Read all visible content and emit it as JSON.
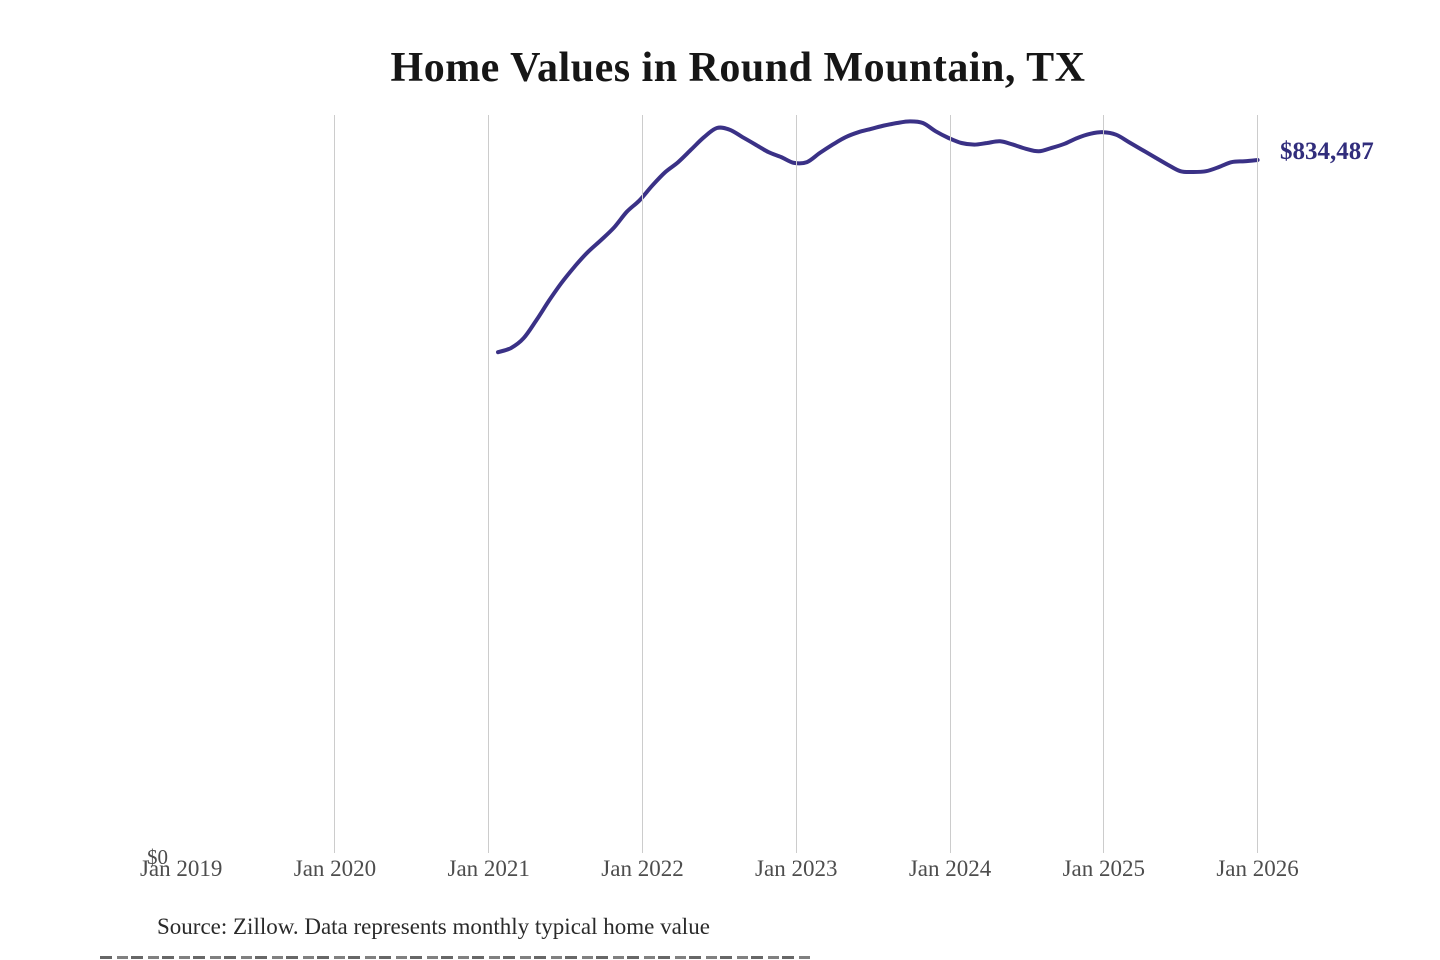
{
  "header": {
    "title": "Home Values in Round Mountain, TX"
  },
  "annotation": {
    "latest_value_label": "$834,487"
  },
  "axes": {
    "y_zero_label": "$0",
    "x_ticks": [
      {
        "label": "Jan 2019",
        "gridline": false
      },
      {
        "label": "Jan 2020",
        "gridline": true
      },
      {
        "label": "Jan 2021",
        "gridline": true
      },
      {
        "label": "Jan 2022",
        "gridline": true
      },
      {
        "label": "Jan 2023",
        "gridline": true
      },
      {
        "label": "Jan 2024",
        "gridline": true
      },
      {
        "label": "Jan 2025",
        "gridline": true
      },
      {
        "label": "Jan 2026",
        "gridline": true
      }
    ]
  },
  "footer": {
    "source_note": "Source: Zillow. Data represents monthly typical home value"
  },
  "colors": {
    "line": "#3a3186",
    "latest_value_label": "#312d7c",
    "grid": "#cccccc",
    "axis_text": "#4d4d4d",
    "title_text": "#161616"
  },
  "chart_data": {
    "type": "line",
    "title": "Home Values in Round Mountain, TX",
    "xlabel": "",
    "ylabel": "",
    "ylim": [
      0,
      888000
    ],
    "grid": "vertical-only",
    "x_tick_labels": [
      "Jan 2019",
      "Jan 2020",
      "Jan 2021",
      "Jan 2022",
      "Jan 2023",
      "Jan 2024",
      "Jan 2025",
      "Jan 2026"
    ],
    "latest_value": 834487,
    "x": [
      "2021-02",
      "2021-03",
      "2021-04",
      "2021-05",
      "2021-06",
      "2021-07",
      "2021-08",
      "2021-09",
      "2021-10",
      "2021-11",
      "2021-12",
      "2022-01",
      "2022-02",
      "2022-03",
      "2022-04",
      "2022-05",
      "2022-06",
      "2022-07",
      "2022-08",
      "2022-09",
      "2022-10",
      "2022-11",
      "2022-12",
      "2023-01",
      "2023-02",
      "2023-03",
      "2023-04",
      "2023-05",
      "2023-06",
      "2023-07",
      "2023-08",
      "2023-09",
      "2023-10",
      "2023-11",
      "2023-12",
      "2024-01",
      "2024-02",
      "2024-03",
      "2024-04",
      "2024-05",
      "2024-06",
      "2024-07",
      "2024-08",
      "2024-09",
      "2024-10",
      "2024-11",
      "2024-12",
      "2025-01",
      "2025-02",
      "2025-03",
      "2025-04",
      "2025-05",
      "2025-06",
      "2025-07",
      "2025-08",
      "2025-09",
      "2025-10",
      "2025-11",
      "2025-12",
      "2026-01"
    ],
    "values": [
      603000,
      608000,
      620000,
      642000,
      666000,
      688000,
      707000,
      724000,
      738000,
      753000,
      772000,
      786000,
      804000,
      820000,
      832000,
      847000,
      862000,
      873000,
      871000,
      862000,
      853000,
      844000,
      838000,
      831000,
      832000,
      843000,
      853000,
      862000,
      868000,
      872000,
      876000,
      879000,
      881000,
      879000,
      869000,
      861000,
      855000,
      853000,
      855000,
      857000,
      853000,
      848000,
      845000,
      849000,
      854000,
      861000,
      866000,
      868000,
      865000,
      856000,
      847000,
      838000,
      829000,
      821000,
      820000,
      821000,
      826000,
      832000,
      833000,
      834487
    ]
  }
}
